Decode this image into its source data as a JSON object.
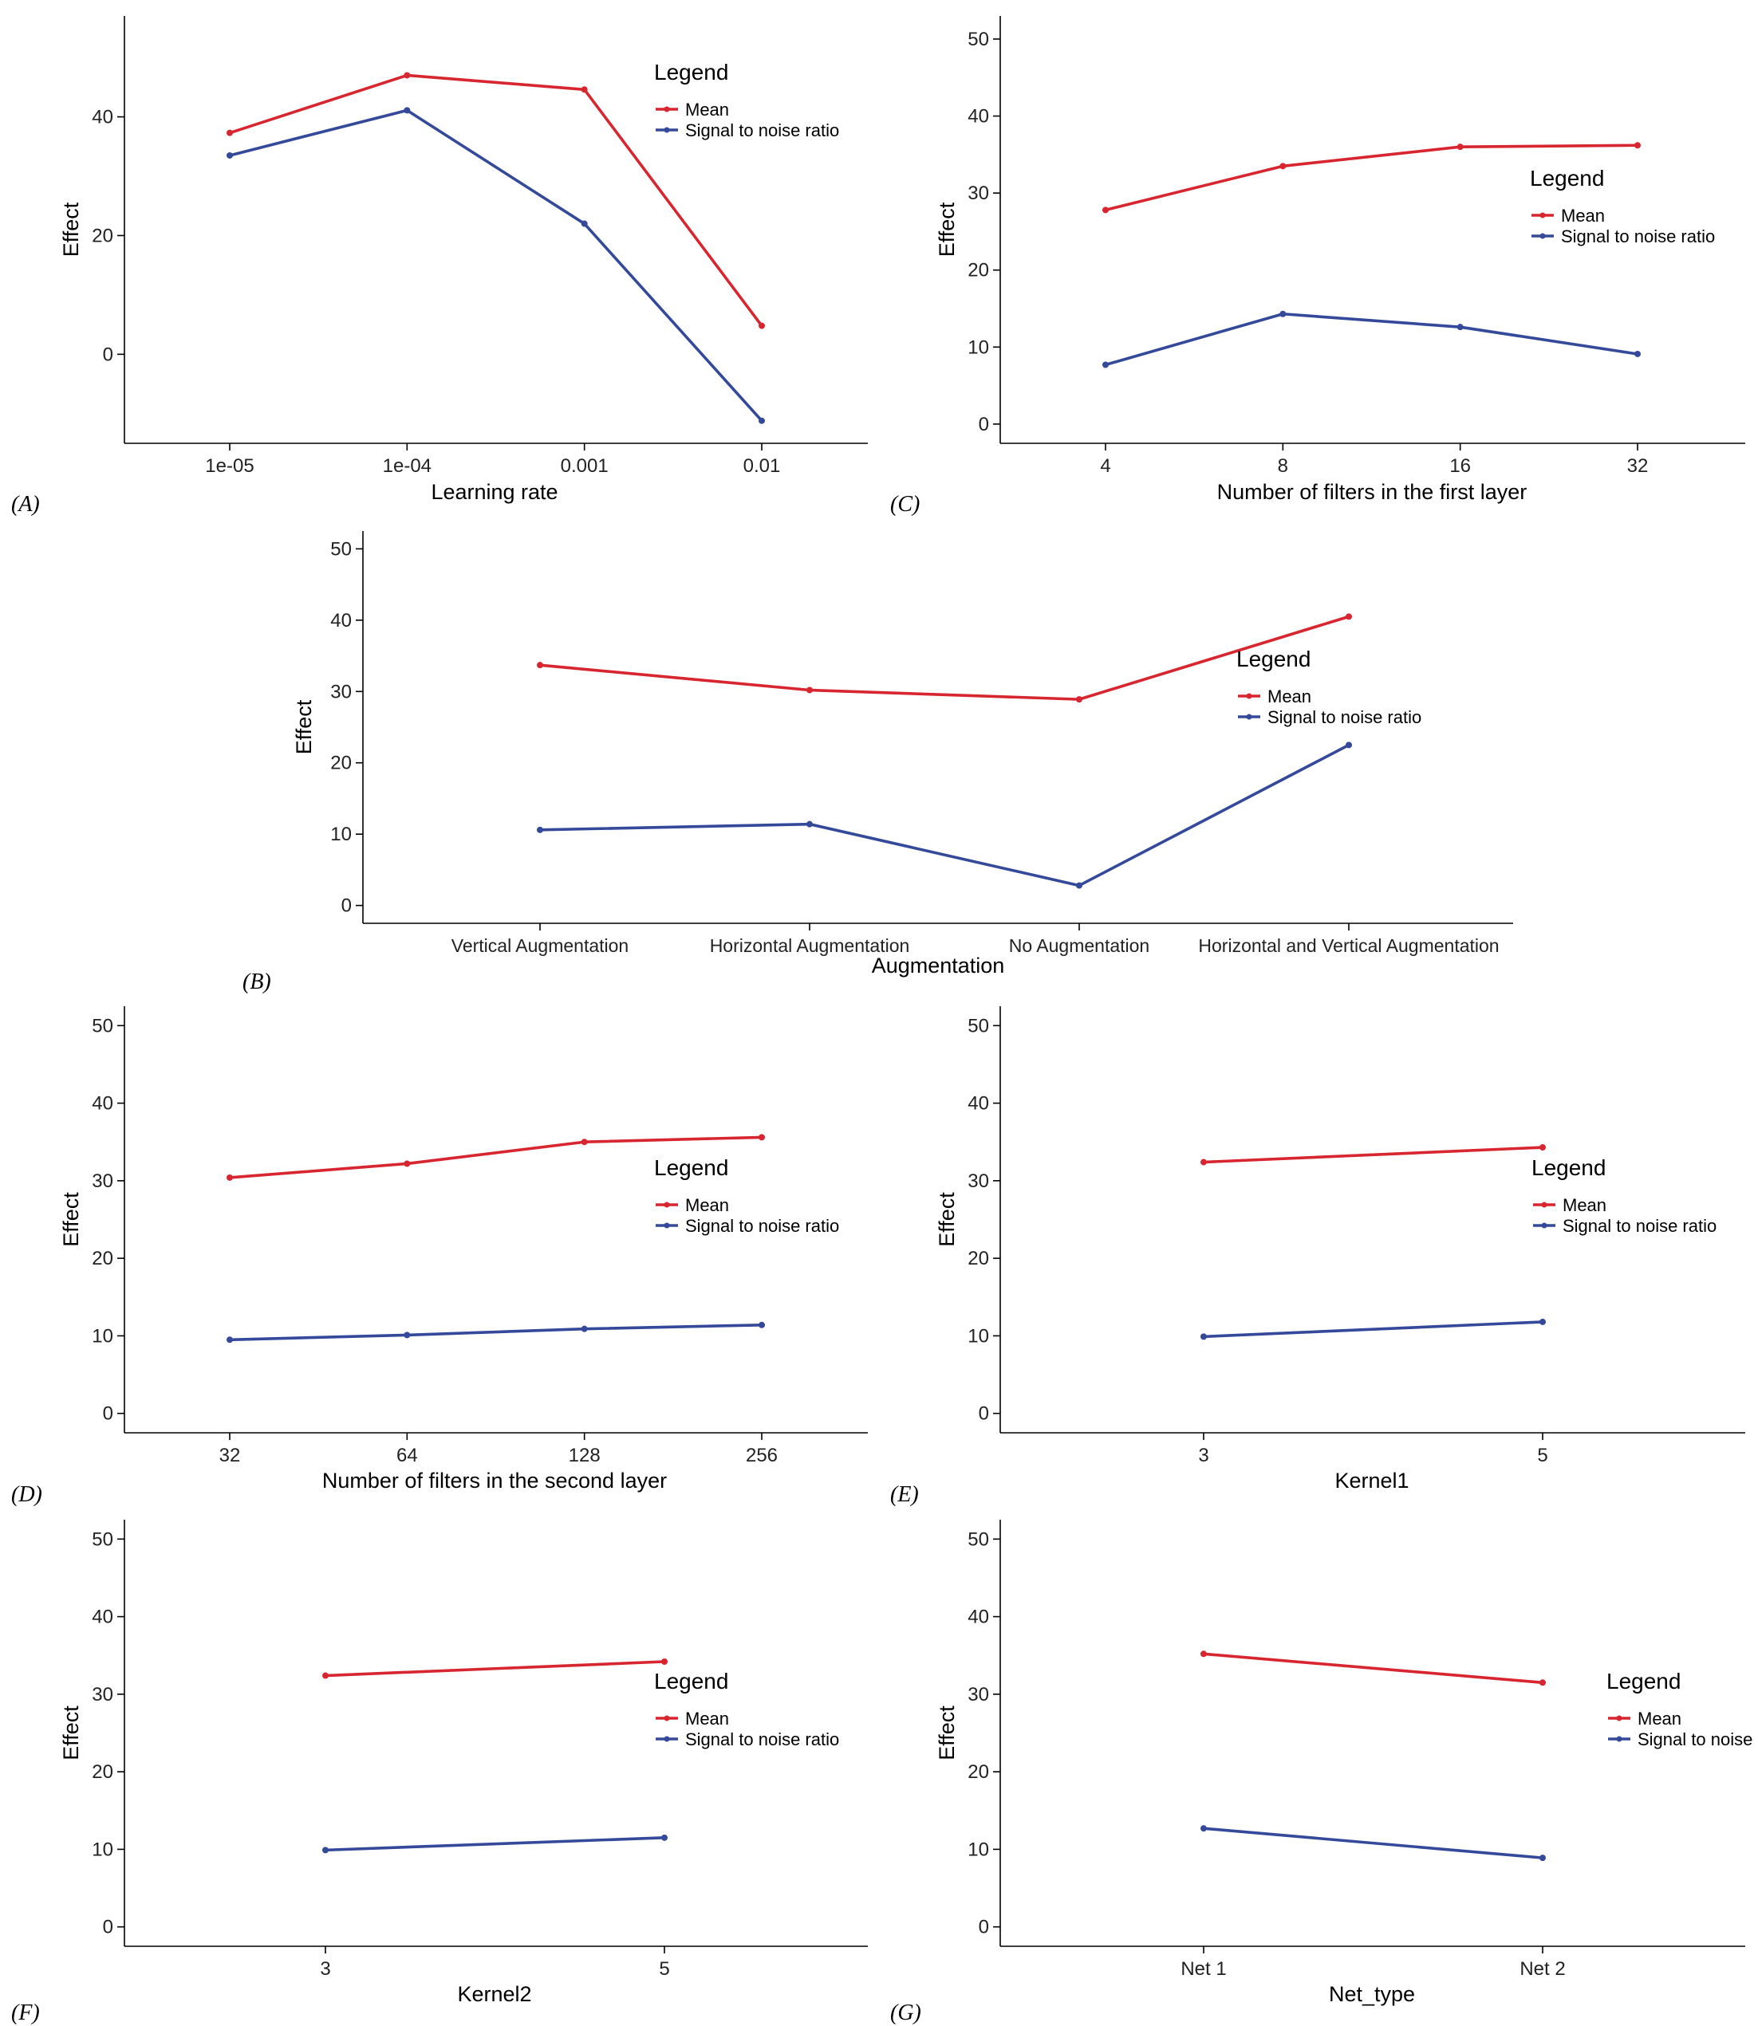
{
  "colors": {
    "mean": "#d7262f",
    "snr": "#34499a",
    "axis": "#000000"
  },
  "chart_data": [
    {
      "id": "A",
      "panel_label": "(A)",
      "type": "line",
      "categories": [
        "1e-05",
        "1e-04",
        "0.001",
        "0.01"
      ],
      "xlabel": "Learning rate",
      "ylabel": "Effect",
      "ylim": [
        -15,
        57
      ],
      "yticks": [
        0,
        20,
        40
      ],
      "legend": {
        "title": "Legend",
        "placement": "top-right"
      },
      "series": [
        {
          "name": "Mean",
          "color": "#d7262f",
          "values": [
            37.3,
            47.0,
            44.6,
            4.8
          ]
        },
        {
          "name": "Signal to noise ratio",
          "color": "#34499a",
          "values": [
            33.5,
            41.1,
            22.0,
            -11.2
          ]
        }
      ]
    },
    {
      "id": "C",
      "panel_label": "(C)",
      "type": "line",
      "categories": [
        "4",
        "8",
        "16",
        "32"
      ],
      "xlabel": "Number of filters in the first layer",
      "ylabel": "Effect",
      "ylim": [
        -2.5,
        53
      ],
      "yticks": [
        0,
        10,
        20,
        30,
        40,
        50
      ],
      "legend": {
        "title": "Legend",
        "placement": "right"
      },
      "series": [
        {
          "name": "Mean",
          "color": "#d7262f",
          "values": [
            27.8,
            33.5,
            36.0,
            36.2
          ]
        },
        {
          "name": "Signal to noise ratio",
          "color": "#34499a",
          "values": [
            7.7,
            14.3,
            12.6,
            9.1
          ]
        }
      ]
    },
    {
      "id": "B",
      "panel_label": "(B)",
      "type": "line",
      "categories": [
        "Vertical Augmentation",
        "Horizontal Augmentation",
        "No Augmentation",
        "Horizontal and Vertical Augmentation"
      ],
      "xlabel": "Augmentation",
      "ylabel": "Effect",
      "ylim": [
        -2.5,
        52.5
      ],
      "yticks": [
        0,
        10,
        20,
        30,
        40,
        50
      ],
      "legend": {
        "title": "Legend",
        "placement": "right"
      },
      "series": [
        {
          "name": "Mean",
          "color": "#d7262f",
          "values": [
            33.7,
            30.2,
            28.9,
            40.5
          ]
        },
        {
          "name": "Signal to noise ratio",
          "color": "#34499a",
          "values": [
            10.6,
            11.4,
            2.8,
            22.5
          ]
        }
      ]
    },
    {
      "id": "D",
      "panel_label": "(D)",
      "type": "line",
      "categories": [
        "32",
        "64",
        "128",
        "256"
      ],
      "xlabel": "Number of filters in the second layer",
      "ylabel": "Effect",
      "ylim": [
        -2.5,
        52.5
      ],
      "yticks": [
        0,
        10,
        20,
        30,
        40,
        50
      ],
      "legend": {
        "title": "Legend",
        "placement": "right"
      },
      "series": [
        {
          "name": "Mean",
          "color": "#d7262f",
          "values": [
            30.4,
            32.2,
            35.0,
            35.6
          ]
        },
        {
          "name": "Signal to noise ratio",
          "color": "#34499a",
          "values": [
            9.5,
            10.1,
            10.9,
            11.4
          ]
        }
      ]
    },
    {
      "id": "E",
      "panel_label": "(E)",
      "type": "line",
      "categories": [
        "3",
        "5"
      ],
      "xlabel": "Kernel1",
      "ylabel": "Effect",
      "ylim": [
        -2.5,
        52.5
      ],
      "yticks": [
        0,
        10,
        20,
        30,
        40,
        50
      ],
      "legend": {
        "title": "Legend",
        "placement": "right"
      },
      "series": [
        {
          "name": "Mean",
          "color": "#d7262f",
          "values": [
            32.4,
            34.3
          ]
        },
        {
          "name": "Signal to noise ratio",
          "color": "#34499a",
          "values": [
            9.9,
            11.8
          ]
        }
      ]
    },
    {
      "id": "F",
      "panel_label": "(F)",
      "type": "line",
      "categories": [
        "3",
        "5"
      ],
      "xlabel": "Kernel2",
      "ylabel": "Effect",
      "ylim": [
        -2.5,
        52.5
      ],
      "yticks": [
        0,
        10,
        20,
        30,
        40,
        50
      ],
      "legend": {
        "title": "Legend",
        "placement": "right"
      },
      "series": [
        {
          "name": "Mean",
          "color": "#d7262f",
          "values": [
            32.4,
            34.2
          ]
        },
        {
          "name": "Signal to noise ratio",
          "color": "#34499a",
          "values": [
            9.9,
            11.5
          ]
        }
      ]
    },
    {
      "id": "G",
      "panel_label": "(G)",
      "type": "line",
      "categories": [
        "Net 1",
        "Net 2"
      ],
      "xlabel": "Net_type",
      "ylabel": "Effect",
      "ylim": [
        -2.5,
        52.5
      ],
      "yticks": [
        0,
        10,
        20,
        30,
        40,
        50
      ],
      "legend": {
        "title": "Legend",
        "placement": "right"
      },
      "series": [
        {
          "name": "Mean",
          "color": "#d7262f",
          "values": [
            35.2,
            31.5
          ]
        },
        {
          "name": "Signal to noise ratio",
          "color": "#34499a",
          "values": [
            12.7,
            8.9
          ]
        }
      ]
    }
  ]
}
